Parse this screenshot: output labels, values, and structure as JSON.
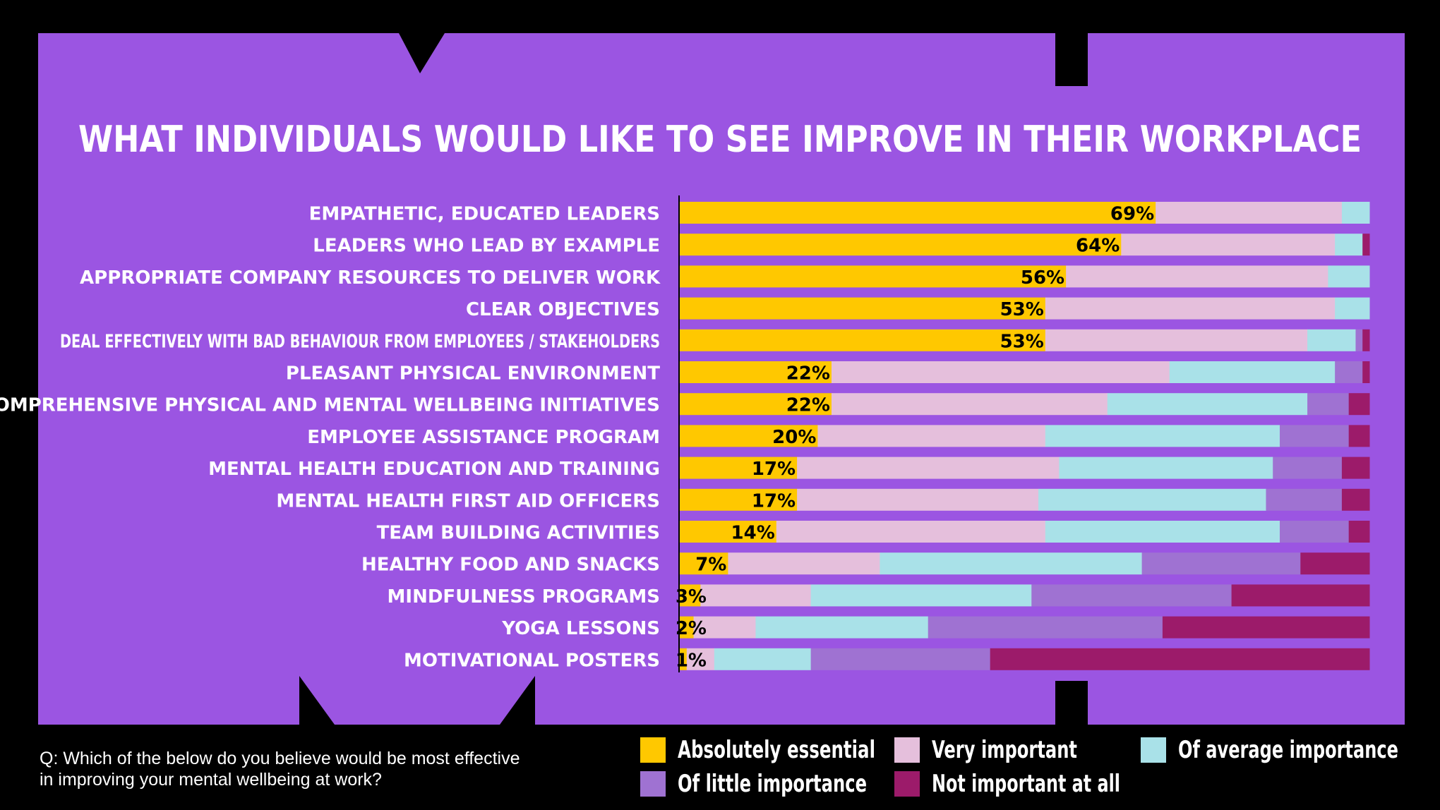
{
  "chart_data": {
    "type": "bar",
    "orientation": "horizontal",
    "stacked": true,
    "title": "WHAT INDIVIDUALS WOULD LIKE TO SEE IMPROVE IN THEIR WORKPLACE",
    "categories": [
      "EMPATHETIC, EDUCATED LEADERS",
      "LEADERS WHO LEAD BY EXAMPLE",
      "APPROPRIATE COMPANY RESOURCES TO DELIVER WORK",
      "CLEAR OBJECTIVES",
      "DEAL EFFECTIVELY WITH BAD BEHAVIOUR FROM EMPLOYEES / STAKEHOLDERS",
      "PLEASANT PHYSICAL ENVIRONMENT",
      "COMPREHENSIVE PHYSICAL AND MENTAL WELLBEING INITIATIVES",
      "EMPLOYEE ASSISTANCE PROGRAM",
      "MENTAL HEALTH EDUCATION AND TRAINING",
      "MENTAL HEALTH FIRST AID OFFICERS",
      "TEAM BUILDING ACTIVITIES",
      "HEALTHY FOOD AND SNACKS",
      "MINDFULNESS PROGRAMS",
      "YOGA LESSONS",
      "MOTIVATIONAL POSTERS"
    ],
    "series": [
      {
        "name": "Absolutely essential",
        "color": "#ffc800",
        "values": [
          69,
          64,
          56,
          53,
          53,
          22,
          22,
          20,
          17,
          17,
          14,
          7,
          3,
          2,
          1
        ]
      },
      {
        "name": "Very important",
        "color": "#e5bfdc",
        "values": [
          27,
          31,
          38,
          42,
          38,
          49,
          40,
          33,
          38,
          35,
          39,
          22,
          16,
          9,
          4
        ]
      },
      {
        "name": "Of average importance",
        "color": "#a9e1e8",
        "values": [
          4,
          4,
          6,
          5,
          7,
          24,
          29,
          34,
          31,
          33,
          34,
          38,
          32,
          25,
          14
        ]
      },
      {
        "name": "Of little importance",
        "color": "#9f72d2",
        "values": [
          0,
          0,
          0,
          0,
          1,
          4,
          6,
          10,
          10,
          11,
          10,
          23,
          29,
          34,
          26
        ]
      },
      {
        "name": "Not important at all",
        "color": "#9c1b6a",
        "values": [
          0,
          1,
          0,
          0,
          1,
          1,
          3,
          3,
          4,
          4,
          3,
          10,
          20,
          30,
          55
        ]
      }
    ],
    "value_labels": [
      "69%",
      "64%",
      "56%",
      "53%",
      "53%",
      "22%",
      "22%",
      "20%",
      "17%",
      "17%",
      "14%",
      "7%",
      "3%",
      "2%",
      "1%"
    ],
    "xlim": [
      0,
      100
    ],
    "legend_position": "bottom-right",
    "grid": false
  },
  "legend": {
    "items": [
      "Absolutely essential",
      "Very important",
      "Of average importance",
      "Of little importance",
      "Not important at all"
    ]
  },
  "question": {
    "text": "Q: Which of the below do you believe would be most effective\nin improving your mental wellbeing at work?"
  },
  "colors": {
    "background": "#000000",
    "panel": "#9b55e2",
    "text": "#ffffff"
  }
}
